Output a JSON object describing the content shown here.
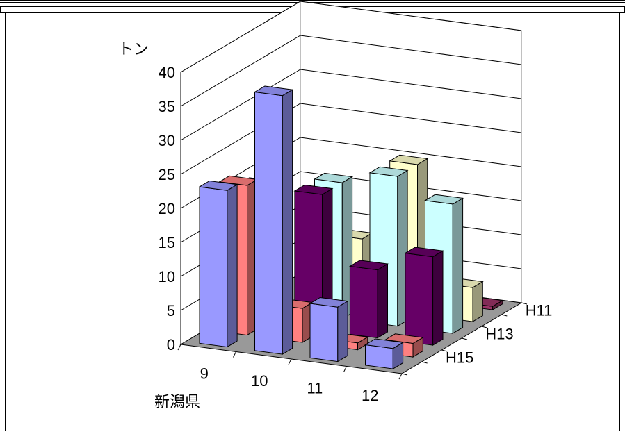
{
  "chart_data": {
    "type": "bar",
    "subtype": "3d-column",
    "ylabel": "トン",
    "xlabel": "新潟県",
    "categories": [
      "9",
      "10",
      "11",
      "12"
    ],
    "depth_labels": [
      "H11",
      "H13",
      "H15"
    ],
    "ylim": [
      0,
      40
    ],
    "yticks": [
      0,
      5,
      10,
      15,
      20,
      25,
      30,
      35,
      40
    ],
    "grid": true,
    "series": [
      {
        "values": [
          null,
          2,
          2,
          0.5
        ],
        "color": "#993366"
      },
      {
        "values": [
          null,
          10,
          22,
          5
        ],
        "color": "#FFFFCC"
      },
      {
        "values": [
          null,
          20,
          22,
          19
        ],
        "color": "#CCFFFF"
      },
      {
        "values": [
          20,
          20,
          10,
          13
        ],
        "color": "#660066"
      },
      {
        "values": [
          22,
          5,
          1,
          2
        ],
        "color": "#FF8080"
      },
      {
        "values": [
          23,
          38,
          8,
          3
        ],
        "color": "#9999FF"
      }
    ]
  }
}
